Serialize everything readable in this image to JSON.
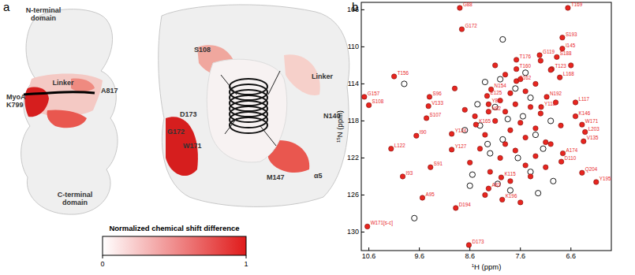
{
  "panel_labels": [
    "a",
    "b"
  ],
  "structure": {
    "left_labels": [
      "N-terminal domain",
      "Linker",
      "A817",
      "MyoA K799",
      "C-terminal domain"
    ],
    "right_labels": [
      "S108",
      "D173",
      "G172",
      "W171",
      "Linker",
      "N140",
      "M147",
      "α5"
    ]
  },
  "colorbar": {
    "title": "Normalized chemical shift difference",
    "range": [
      0,
      1
    ],
    "ticks": [
      0,
      1
    ]
  },
  "chart_data": {
    "type": "scatter",
    "xlabel": "1H (ppm)",
    "ylabel": "15N (ppm)",
    "xlim": [
      10.75,
      5.8
    ],
    "ylim": [
      105.2,
      132
    ],
    "xticks": [
      10.6,
      9.6,
      8.6,
      7.6,
      6.6
    ],
    "yticks": [
      106,
      110,
      114,
      118,
      122,
      126,
      130
    ],
    "series": [
      {
        "color": "#e8251f",
        "marker": "filled-circle",
        "x": [
          8.8,
          6.66,
          8.76,
          6.77,
          6.77,
          7.22,
          6.88,
          7.68,
          7.68,
          6.98,
          6.82,
          10.1,
          10.69,
          7.68,
          8.18,
          9.4,
          8.26,
          7.08,
          7.19,
          6.51,
          9.42,
          10.6,
          8.23,
          6.51,
          6.38,
          9.46,
          8.23,
          8.48,
          6.32,
          6.35,
          9.66,
          8.96,
          10.16,
          8.96,
          6.76,
          6.79,
          6.38,
          6.1,
          9.38,
          7.98,
          9.93,
          8.23,
          7.96,
          9.54,
          8.88,
          10.63,
          8.62,
          7.9,
          7.6,
          7.3,
          7.5,
          7.8,
          8.0,
          7.7,
          7.4,
          7.2,
          7.9,
          8.1,
          7.6,
          7.3,
          7.8,
          8.3,
          7.5,
          7.1,
          7.9,
          8.4,
          7.7,
          7.3,
          8.0,
          8.6,
          7.5,
          7.1,
          8.2,
          7.8,
          7.4,
          8.5,
          8.7,
          7.0,
          7.2,
          6.9,
          6.8,
          7.0,
          8.1,
          8.9,
          8.3,
          7.6,
          6.6
        ],
        "values": [
          105.8,
          105.8,
          108.1,
          109.0,
          110.2,
          110.9,
          111.1,
          111.4,
          112.4,
          112.4,
          113.3,
          113.2,
          115.4,
          113.7,
          114.6,
          115.4,
          115.3,
          115.4,
          116.5,
          116.0,
          116.4,
          116.3,
          116.2,
          117.5,
          118.4,
          117.7,
          117.0,
          118.4,
          119.2,
          120.2,
          119.6,
          119.4,
          121.0,
          121.1,
          121.5,
          122.4,
          123.6,
          124.6,
          123.0,
          124.1,
          124.0,
          125.3,
          126.5,
          126.3,
          127.4,
          129.4,
          131.4,
          113.0,
          113.5,
          114.0,
          114.8,
          115.0,
          115.8,
          116.2,
          116.5,
          117.2,
          117.0,
          118.0,
          118.2,
          118.8,
          119.0,
          119.5,
          119.8,
          120.3,
          120.5,
          121.0,
          121.2,
          121.8,
          122.0,
          122.5,
          122.8,
          123.0,
          123.5,
          124.5,
          124.0,
          117.5,
          116.8,
          112.5,
          111.5,
          116.0,
          118.5,
          120.5,
          112.0,
          114.5,
          126.0,
          126.8,
          112.0
        ],
        "labels": [
          "G88",
          "T169",
          "G172",
          "S193",
          "I145",
          "G119",
          "S188",
          "T176",
          "T160",
          "T123",
          "L168",
          "T156",
          "G157",
          "S162",
          "N154",
          "S96",
          "E125",
          "N192",
          "Y118",
          "L117",
          "V133",
          "S108",
          "Y80",
          "K146",
          "W171",
          "S107",
          "N82",
          "K165",
          "L203",
          "V135",
          "I90",
          "Y124",
          "L122",
          "Y127",
          "A174",
          "D110",
          "Q204",
          "Y195",
          "S91",
          "K115",
          "I93",
          "A83",
          "K196",
          "A95",
          "D194",
          "W171[s-c]",
          "D173",
          null,
          null,
          null,
          null,
          null,
          null,
          null,
          null,
          null,
          null,
          null,
          null,
          null,
          null,
          null,
          null,
          null,
          null,
          null,
          null,
          null,
          null,
          null,
          null,
          null,
          null,
          null,
          null,
          null,
          null,
          null,
          null,
          null,
          null,
          null,
          null,
          null,
          null,
          null,
          null
        ]
      },
      {
        "color": "#000000",
        "marker": "open-circle",
        "x": [
          7.95,
          8.45,
          8.7,
          8.0,
          7.7,
          7.4,
          7.85,
          7.55,
          7.3,
          7.95,
          8.2,
          7.65,
          7.4,
          8.05,
          7.8,
          8.4,
          8.55,
          7.15,
          7.0,
          9.7,
          8.3,
          7.5,
          8.25,
          6.95,
          7.25,
          8.6,
          9.9,
          8.1
        ],
        "values": [
          109.2,
          116.2,
          119.0,
          113.5,
          114.5,
          115.5,
          117.8,
          117.5,
          119.5,
          120.0,
          121.5,
          122.0,
          123.5,
          124.8,
          125.5,
          118.5,
          123.8,
          121.0,
          118.0,
          128.5,
          113.8,
          112.8,
          120.5,
          124.5,
          125.8,
          125.0,
          114.0,
          116.5
        ]
      }
    ]
  }
}
